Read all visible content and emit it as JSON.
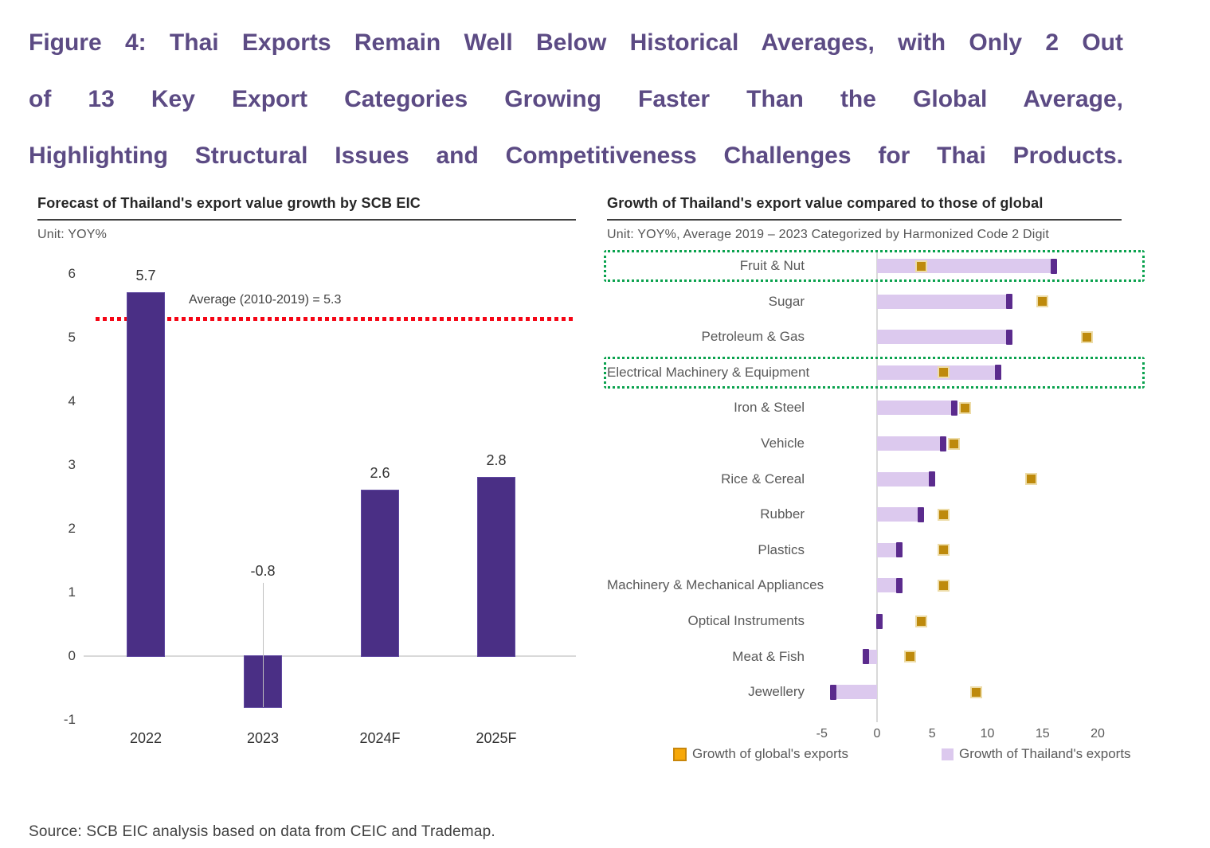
{
  "figure_title": {
    "lines": [
      "Figure 4: Thai Exports Remain Well Below Historical Averages, with Only 2 Out",
      "of 13 Key Export Categories Growing Faster Than the Global Average,",
      "Highlighting Structural Issues and Competitiveness Challenges for Thai Products."
    ]
  },
  "source_note": "Source: SCB EIC analysis based on data from CEIC and Trademap.",
  "colors": {
    "title_purple": "#5C4B84",
    "forecast_bar_purple": "#4A2F85",
    "average_line_red": "#F50515",
    "thailand_bar_lavender": "#DCC9EE",
    "thailand_cap_purple": "#5B2B8D",
    "global_marker_gold": "#BE8A0C",
    "highlight_green": "#0AA24E"
  },
  "chart_data": [
    {
      "type": "bar",
      "title": "Forecast of Thailand's export value growth by SCB EIC",
      "unit_label": "Unit: YOY%",
      "categories": [
        "2022",
        "2023",
        "2024F",
        "2025F"
      ],
      "values": [
        5.7,
        -0.8,
        2.6,
        2.8
      ],
      "value_labels": [
        "5.7",
        "-0.8",
        "2.6",
        "2.8"
      ],
      "ylabel": "YOY%",
      "ylim": [
        -1,
        6
      ],
      "yticks": [
        6,
        5,
        4,
        3,
        2,
        1,
        0,
        -1
      ],
      "grid": false,
      "reference_line": {
        "value": 5.3,
        "label": "Average (2010-2019) = 5.3"
      }
    },
    {
      "type": "bar",
      "orientation": "horizontal",
      "title": "Growth of Thailand's export value compared to those of global",
      "unit_label": "Unit: YOY%, Average 2019 – 2023 Categorized by Harmonized Code 2 Digit",
      "categories": [
        "Fruit & Nut",
        "Sugar",
        "Petroleum & Gas",
        "Electrical Machinery & Equipment",
        "Iron & Steel",
        "Vehicle",
        "Rice & Cereal",
        "Rubber",
        "Plastics",
        "Machinery & Mechanical Appliances",
        "Optical Instruments",
        "Meat & Fish",
        "Jewellery"
      ],
      "series": [
        {
          "name": "Growth of Thailand's exports",
          "style": "bar",
          "values": [
            16,
            12,
            12,
            11,
            7,
            6,
            5,
            4,
            2,
            2,
            0.2,
            -1,
            -4
          ]
        },
        {
          "name": "Growth of global's exports",
          "style": "square-marker",
          "values": [
            4,
            15,
            19,
            6,
            8,
            7,
            14,
            6,
            6,
            6,
            4,
            3,
            9
          ]
        }
      ],
      "xlim": [
        -5,
        20
      ],
      "xticks": [
        -5,
        0,
        5,
        10,
        15,
        20
      ],
      "grid": false,
      "legend_position": "bottom",
      "highlighted_categories": [
        "Fruit & Nut",
        "Electrical Machinery & Equipment"
      ]
    }
  ]
}
